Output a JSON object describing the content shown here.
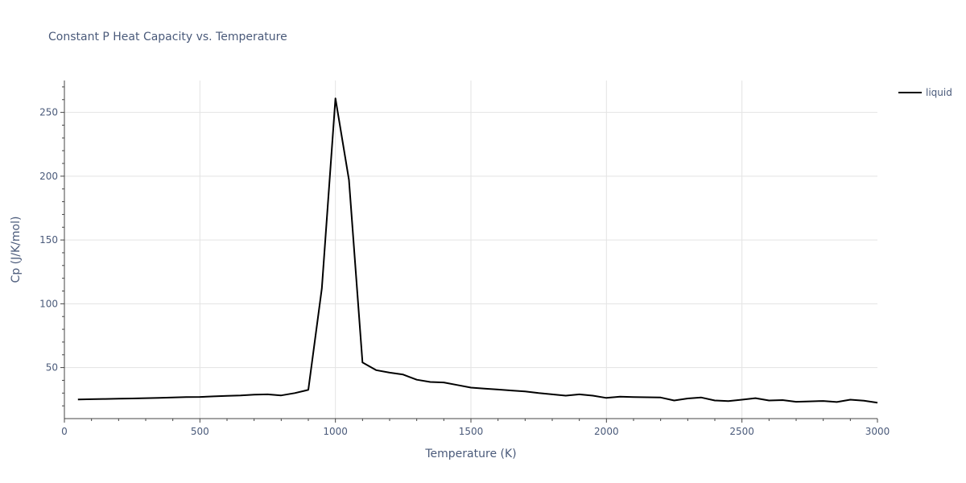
{
  "chart_data": {
    "type": "line",
    "title": "Constant P Heat Capacity vs. Temperature",
    "xlabel": "Temperature (K)",
    "ylabel": "Cp (J/K/mol)",
    "xlim": [
      0,
      3000
    ],
    "ylim": [
      10,
      275
    ],
    "x_ticks": [
      0,
      500,
      1000,
      1500,
      2000,
      2500,
      3000
    ],
    "y_ticks": [
      50,
      100,
      150,
      200,
      250
    ],
    "grid": true,
    "legend_position": "top-right",
    "series": [
      {
        "name": "liquid",
        "color": "#000000",
        "x": [
          50,
          100,
          150,
          200,
          250,
          300,
          350,
          400,
          450,
          500,
          550,
          600,
          650,
          700,
          750,
          800,
          850,
          900,
          950,
          1000,
          1050,
          1100,
          1150,
          1200,
          1250,
          1300,
          1350,
          1400,
          1450,
          1500,
          1550,
          1600,
          1650,
          1700,
          1750,
          1800,
          1850,
          1900,
          1950,
          2000,
          2050,
          2100,
          2150,
          2200,
          2250,
          2300,
          2350,
          2400,
          2450,
          2500,
          2550,
          2600,
          2650,
          2700,
          2750,
          2800,
          2850,
          2900,
          2950,
          3000
        ],
        "y": [
          25,
          25.2,
          25.4,
          25.6,
          25.8,
          26,
          26.3,
          26.6,
          26.9,
          27,
          27.4,
          27.8,
          28.2,
          28.8,
          29,
          28.2,
          30,
          32.5,
          112,
          261,
          197,
          54,
          48,
          46,
          44.5,
          40.5,
          38.7,
          38.3,
          36.3,
          34.3,
          33.5,
          32.8,
          32,
          31.3,
          30,
          29,
          28,
          29,
          28,
          26.2,
          27.2,
          26.9,
          26.7,
          26.5,
          24.2,
          25.8,
          26.5,
          24.2,
          23.7,
          24.8,
          26,
          24.2,
          24.5,
          23.2,
          23.5,
          23.8,
          23,
          24.8,
          24,
          22.5
        ]
      }
    ]
  }
}
